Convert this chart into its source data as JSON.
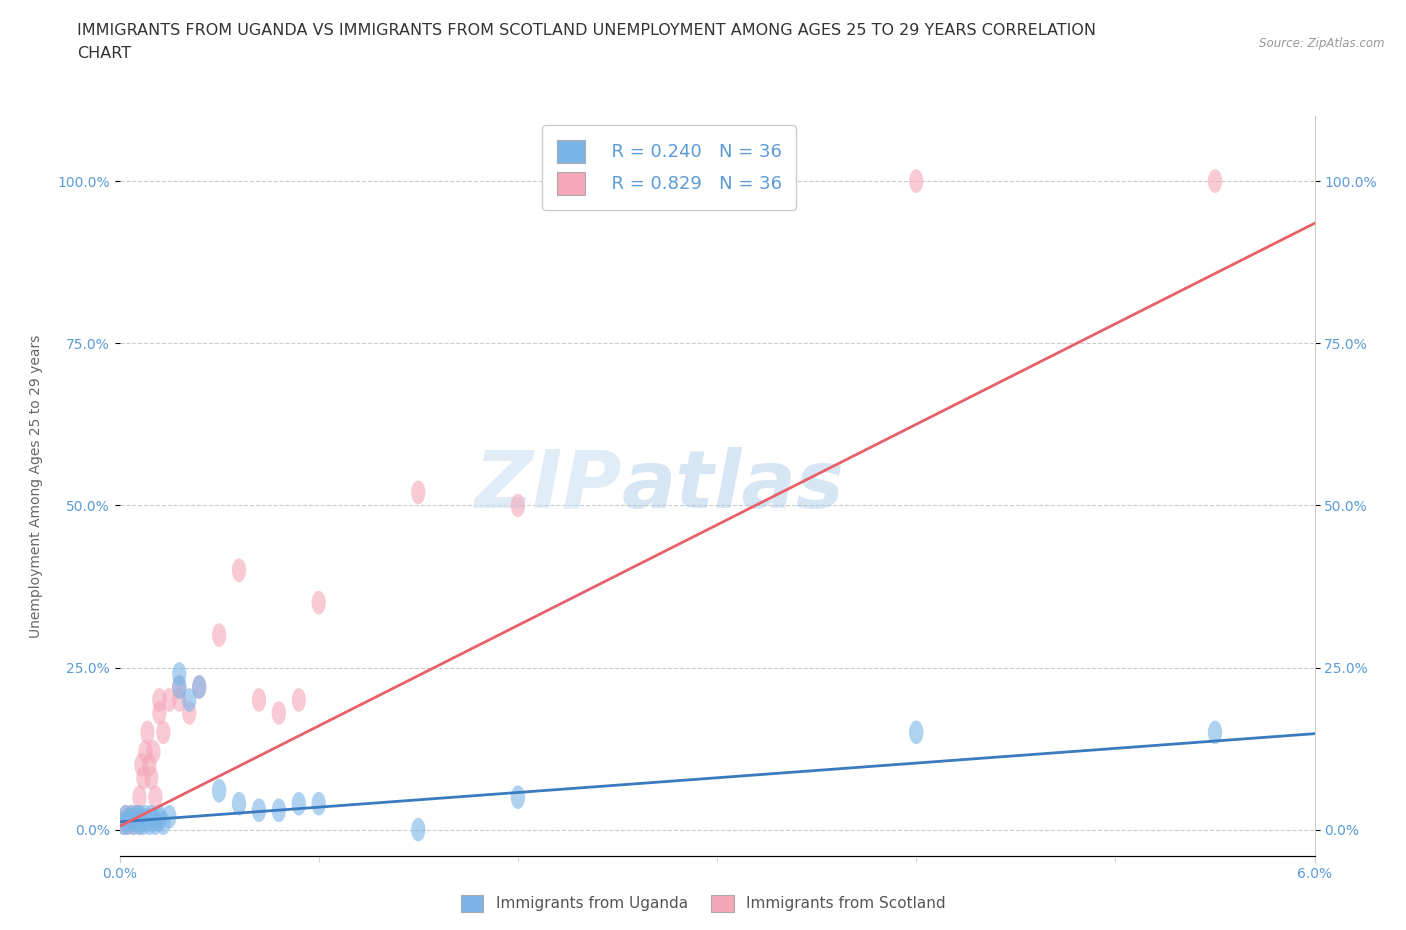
{
  "title_line1": "IMMIGRANTS FROM UGANDA VS IMMIGRANTS FROM SCOTLAND UNEMPLOYMENT AMONG AGES 25 TO 29 YEARS CORRELATION",
  "title_line2": "CHART",
  "source": "Source: ZipAtlas.com",
  "ylabel": "Unemployment Among Ages 25 to 29 years",
  "y_ticks_labels": [
    "0.0%",
    "25.0%",
    "50.0%",
    "75.0%",
    "100.0%"
  ],
  "y_tick_vals": [
    0.0,
    0.25,
    0.5,
    0.75,
    1.0
  ],
  "x_min": 0.0,
  "x_max": 0.06,
  "y_min": -0.04,
  "y_max": 1.1,
  "legend_r_uganda": "R = 0.240",
  "legend_n_uganda": "N = 36",
  "legend_r_scotland": "R = 0.829",
  "legend_n_scotland": "N = 36",
  "color_uganda": "#7ab4e8",
  "color_scotland": "#f4a7b9",
  "color_trend_uganda": "#3a7abf",
  "color_trend_scotland": "#e8606a",
  "watermark_zip": "ZIP",
  "watermark_atlas": "atlas",
  "legend_bottom_uganda": "Immigrants from Uganda",
  "legend_bottom_scotland": "Immigrants from Scotland",
  "uganda_x": [
    0.0002,
    0.0003,
    0.0004,
    0.0005,
    0.0006,
    0.0007,
    0.0008,
    0.0009,
    0.001,
    0.001,
    0.0011,
    0.0012,
    0.0013,
    0.0014,
    0.0015,
    0.0016,
    0.0017,
    0.0018,
    0.002,
    0.002,
    0.0022,
    0.0025,
    0.003,
    0.003,
    0.0035,
    0.004,
    0.005,
    0.006,
    0.007,
    0.008,
    0.009,
    0.01,
    0.015,
    0.02,
    0.04,
    0.055
  ],
  "uganda_y": [
    0.01,
    0.02,
    0.01,
    0.015,
    0.02,
    0.01,
    0.015,
    0.02,
    0.01,
    0.02,
    0.015,
    0.01,
    0.02,
    0.015,
    0.01,
    0.02,
    0.015,
    0.01,
    0.015,
    0.02,
    0.01,
    0.02,
    0.22,
    0.24,
    0.2,
    0.22,
    0.06,
    0.04,
    0.03,
    0.03,
    0.04,
    0.04,
    0.0,
    0.05,
    0.15,
    0.15
  ],
  "scotland_x": [
    0.0002,
    0.0003,
    0.0004,
    0.0005,
    0.0006,
    0.0007,
    0.0008,
    0.0009,
    0.001,
    0.001,
    0.0011,
    0.0012,
    0.0013,
    0.0014,
    0.0015,
    0.0016,
    0.0017,
    0.0018,
    0.002,
    0.002,
    0.0022,
    0.0025,
    0.003,
    0.003,
    0.0035,
    0.004,
    0.005,
    0.006,
    0.007,
    0.008,
    0.009,
    0.01,
    0.015,
    0.02,
    0.04,
    0.055
  ],
  "scotland_y": [
    0.01,
    0.02,
    0.01,
    0.015,
    0.02,
    0.01,
    0.015,
    0.02,
    0.01,
    0.05,
    0.1,
    0.08,
    0.12,
    0.15,
    0.1,
    0.08,
    0.12,
    0.05,
    0.2,
    0.18,
    0.15,
    0.2,
    0.2,
    0.22,
    0.18,
    0.22,
    0.3,
    0.4,
    0.2,
    0.18,
    0.2,
    0.35,
    0.52,
    0.5,
    1.0,
    1.0
  ],
  "grid_color": "#cccccc",
  "bg_color": "#ffffff",
  "title_fontsize": 11.5,
  "axis_label_fontsize": 10,
  "tick_fontsize": 10,
  "trend_ug_x0": 0.0,
  "trend_ug_y0": 0.012,
  "trend_ug_x1": 0.06,
  "trend_ug_y1": 0.148,
  "trend_sc_x0": 0.0,
  "trend_sc_y0": 0.005,
  "trend_sc_x1": 0.06,
  "trend_sc_y1": 0.935
}
